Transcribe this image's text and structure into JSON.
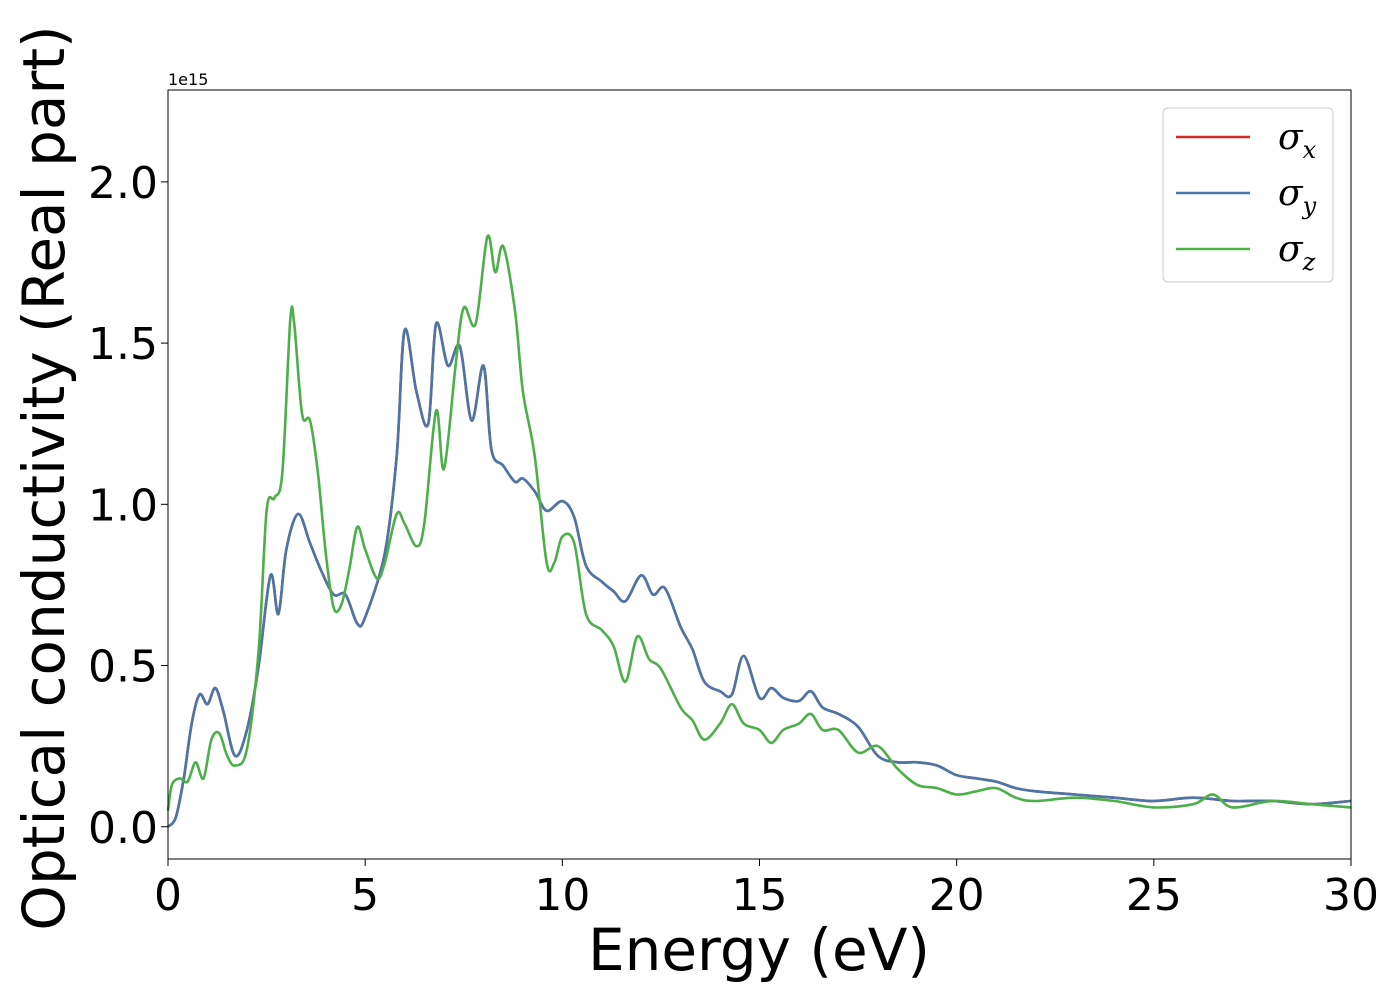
{
  "chart_data": {
    "type": "line",
    "xlabel": "Energy (eV)",
    "ylabel": "Optical conductivity (Real part)",
    "y_offset_label": "1e15",
    "xlim": [
      0,
      30
    ],
    "ylim": [
      -0.1,
      2.285
    ],
    "y_unit_multiplier": 1000000000000000.0,
    "grid": false,
    "legend_position": "top-right",
    "xticks": [
      0,
      5,
      10,
      15,
      20,
      25,
      30
    ],
    "xtick_labels": [
      "0",
      "5",
      "10",
      "15",
      "20",
      "25",
      "30"
    ],
    "yticks": [
      0.0,
      0.5,
      1.0,
      1.5,
      2.0
    ],
    "ytick_labels": [
      "0.0",
      "0.5",
      "1.0",
      "1.5",
      "2.0"
    ],
    "colors": {
      "sigma_x": "#d62728",
      "sigma_y": "#4a76a8",
      "sigma_z": "#4daf4a"
    },
    "series_xy": {
      "x": [
        0,
        0.2,
        0.4,
        0.6,
        0.8,
        1.0,
        1.2,
        1.4,
        1.7,
        2.0,
        2.3,
        2.6,
        2.8,
        3.0,
        3.3,
        3.6,
        3.9,
        4.2,
        4.5,
        4.8,
        5.0,
        5.5,
        5.8,
        6.0,
        6.3,
        6.6,
        6.8,
        7.1,
        7.4,
        7.7,
        8.0,
        8.2,
        8.5,
        8.8,
        9.0,
        9.3,
        9.6,
        10.0,
        10.3,
        10.6,
        11.0,
        11.3,
        11.6,
        12.0,
        12.3,
        12.6,
        13.0,
        13.3,
        13.6,
        14.0,
        14.3,
        14.6,
        15.0,
        15.3,
        15.6,
        16.0,
        16.3,
        16.6,
        17.0,
        17.5,
        18.0,
        18.5,
        19.0,
        19.5,
        20.0,
        20.5,
        21.0,
        21.5,
        22.0,
        23.0,
        24.0,
        25.0,
        26.0,
        27.0,
        28.0,
        29.0,
        30.0
      ],
      "y": [
        0.0,
        0.03,
        0.15,
        0.32,
        0.41,
        0.38,
        0.43,
        0.36,
        0.22,
        0.3,
        0.5,
        0.78,
        0.66,
        0.86,
        0.97,
        0.88,
        0.79,
        0.72,
        0.72,
        0.63,
        0.65,
        0.85,
        1.15,
        1.54,
        1.35,
        1.25,
        1.56,
        1.43,
        1.49,
        1.26,
        1.43,
        1.17,
        1.12,
        1.07,
        1.08,
        1.04,
        0.98,
        1.01,
        0.96,
        0.81,
        0.76,
        0.73,
        0.7,
        0.78,
        0.72,
        0.74,
        0.62,
        0.55,
        0.45,
        0.42,
        0.41,
        0.53,
        0.4,
        0.43,
        0.4,
        0.39,
        0.42,
        0.37,
        0.35,
        0.31,
        0.22,
        0.2,
        0.2,
        0.19,
        0.16,
        0.15,
        0.14,
        0.12,
        0.11,
        0.1,
        0.09,
        0.08,
        0.09,
        0.08,
        0.08,
        0.07,
        0.08
      ]
    },
    "series_z": {
      "x": [
        0,
        0.1,
        0.3,
        0.5,
        0.7,
        0.9,
        1.1,
        1.3,
        1.5,
        1.7,
        2.0,
        2.3,
        2.5,
        2.7,
        2.9,
        3.1,
        3.2,
        3.4,
        3.6,
        3.8,
        4.0,
        4.2,
        4.4,
        4.6,
        4.8,
        5.0,
        5.3,
        5.5,
        5.8,
        6.0,
        6.3,
        6.5,
        6.8,
        7.0,
        7.3,
        7.5,
        7.8,
        8.1,
        8.3,
        8.5,
        8.8,
        9.0,
        9.3,
        9.6,
        9.8,
        10.0,
        10.3,
        10.6,
        11.0,
        11.3,
        11.6,
        11.9,
        12.2,
        12.5,
        13.0,
        13.3,
        13.6,
        14.0,
        14.3,
        14.6,
        15.0,
        15.3,
        15.6,
        16.0,
        16.3,
        16.6,
        17.0,
        17.5,
        18.0,
        18.5,
        19.0,
        19.5,
        20.0,
        20.5,
        21.0,
        21.5,
        22.0,
        23.0,
        24.0,
        25.0,
        26.0,
        26.5,
        27.0,
        28.0,
        29.0,
        30.0
      ],
      "y": [
        0.05,
        0.13,
        0.15,
        0.14,
        0.2,
        0.15,
        0.27,
        0.29,
        0.22,
        0.19,
        0.24,
        0.55,
        0.98,
        1.02,
        1.1,
        1.57,
        1.56,
        1.28,
        1.26,
        1.1,
        0.85,
        0.68,
        0.69,
        0.8,
        0.93,
        0.86,
        0.77,
        0.82,
        0.97,
        0.94,
        0.87,
        0.94,
        1.29,
        1.11,
        1.44,
        1.61,
        1.56,
        1.83,
        1.72,
        1.8,
        1.6,
        1.35,
        1.15,
        0.82,
        0.82,
        0.9,
        0.88,
        0.66,
        0.61,
        0.56,
        0.45,
        0.59,
        0.52,
        0.49,
        0.37,
        0.33,
        0.27,
        0.32,
        0.38,
        0.32,
        0.3,
        0.26,
        0.3,
        0.32,
        0.35,
        0.3,
        0.3,
        0.23,
        0.25,
        0.18,
        0.13,
        0.12,
        0.1,
        0.11,
        0.12,
        0.09,
        0.08,
        0.09,
        0.08,
        0.06,
        0.07,
        0.1,
        0.06,
        0.08,
        0.07,
        0.06
      ]
    },
    "series": [
      {
        "name": "σ",
        "sub": "x",
        "color_key": "sigma_x",
        "data_key": "series_xy"
      },
      {
        "name": "σ",
        "sub": "y",
        "color_key": "sigma_y",
        "data_key": "series_xy"
      },
      {
        "name": "σ",
        "sub": "z",
        "color_key": "sigma_z",
        "data_key": "series_z"
      }
    ]
  }
}
